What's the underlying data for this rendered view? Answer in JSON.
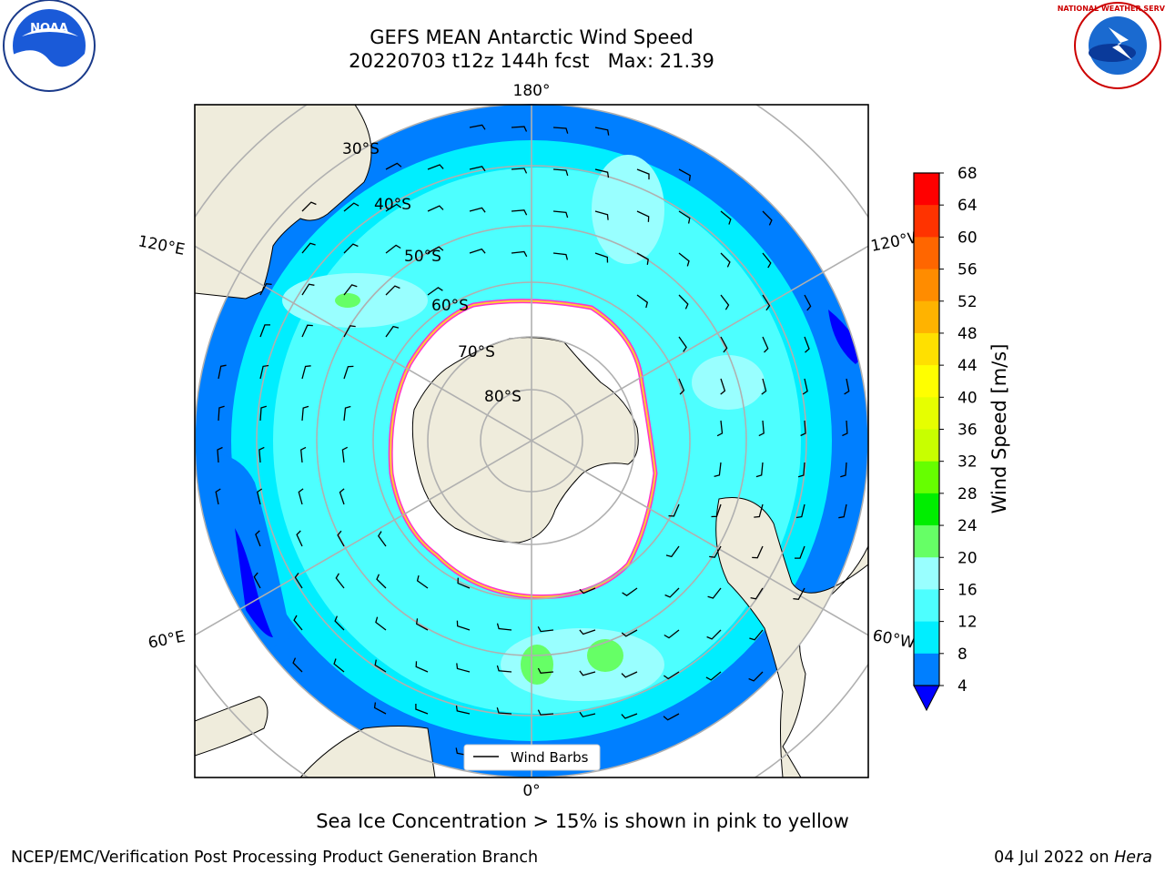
{
  "header": {
    "title": "GEFS MEAN Antarctic Wind Speed",
    "subtitle": "20220703 t12z 144h fcst   Max: 21.39"
  },
  "map": {
    "projection": "south-polar-stereographic",
    "lon_labels": {
      "top": "180°",
      "bottom": "0°",
      "upper_left": "120°E",
      "upper_right": "120°W",
      "lower_left": "60°E",
      "lower_right": "60°W"
    },
    "lat_labels": [
      "30°S",
      "40°S",
      "50°S",
      "60°S",
      "70°S",
      "80°S"
    ],
    "legend_label": "Wind Barbs",
    "colors": {
      "land": "#efecdc",
      "sea_ice": "#ffffff",
      "ice_edge_pink": "#ff33cc",
      "ice_edge_yellow": "#ffcc33",
      "grid": "#b0b0b0",
      "coast": "#000000"
    }
  },
  "colorbar": {
    "label": "Wind Speed [m/s]",
    "ticks": [
      "68",
      "64",
      "60",
      "56",
      "52",
      "48",
      "44",
      "40",
      "36",
      "32",
      "28",
      "24",
      "20",
      "16",
      "12",
      "8",
      "4"
    ],
    "bins": [
      {
        "range": "64-68",
        "color": "#ff0000"
      },
      {
        "range": "60-64",
        "color": "#ff3300"
      },
      {
        "range": "56-60",
        "color": "#ff6600"
      },
      {
        "range": "52-56",
        "color": "#ff8c00"
      },
      {
        "range": "48-52",
        "color": "#ffb300"
      },
      {
        "range": "44-48",
        "color": "#ffe000"
      },
      {
        "range": "40-44",
        "color": "#ffff00"
      },
      {
        "range": "36-40",
        "color": "#e6ff00"
      },
      {
        "range": "32-36",
        "color": "#c8ff00"
      },
      {
        "range": "28-32",
        "color": "#66ff00"
      },
      {
        "range": "24-28",
        "color": "#00ee00"
      },
      {
        "range": "20-24",
        "color": "#66ff66"
      },
      {
        "range": "16-20",
        "color": "#99ffff"
      },
      {
        "range": "12-16",
        "color": "#4dffff"
      },
      {
        "range": "8-12",
        "color": "#00eeff"
      },
      {
        "range": "4-8",
        "color": "#007fff"
      }
    ],
    "under_color": "#0000ff"
  },
  "caption": "Sea Ice Concentration > 15% is shown in pink to yellow",
  "footer": {
    "left": "NCEP/EMC/Verification Post Processing Product Generation Branch",
    "right_text": "04 Jul 2022 on ",
    "right_italic": "Hera"
  },
  "logos": {
    "left": "noara-logo",
    "right": "nws-logo"
  }
}
